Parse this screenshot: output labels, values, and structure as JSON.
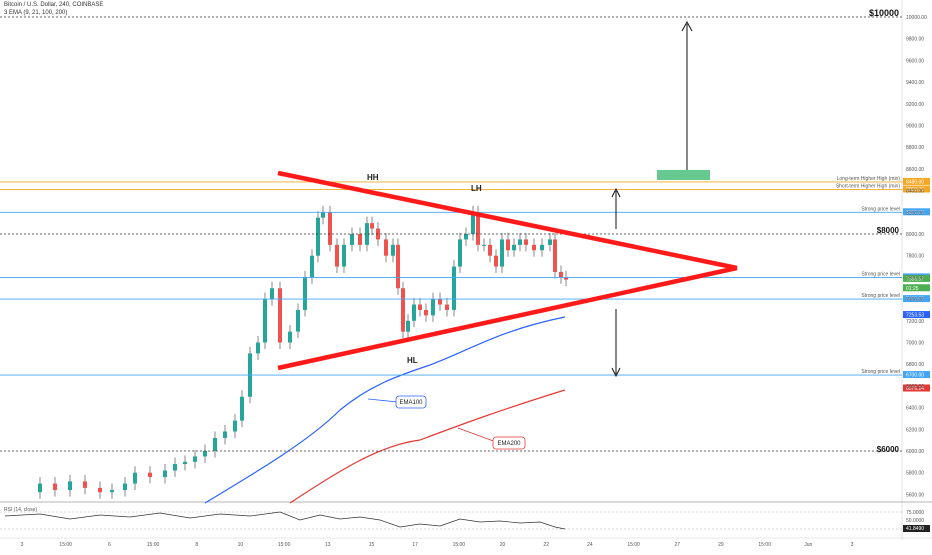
{
  "header": {
    "symbol_line": "Bitcoin / U.S. Dollar, 240, COINBASE",
    "indicator_line": "3 EMA (9, 21, 100, 200)"
  },
  "price_axis": {
    "ticks": [
      "10000.00",
      "9800.00",
      "9600.00",
      "9400.00",
      "9200.00",
      "9000.00",
      "8800.00",
      "8600.00",
      "8400.00",
      "8200.00",
      "8000.00",
      "7800.00",
      "7600.00",
      "7400.00",
      "7200.00",
      "7000.00",
      "6800.00",
      "6600.00",
      "6400.00",
      "6200.00",
      "6000.00",
      "5800.00",
      "5600.00"
    ]
  },
  "time_axis": {
    "ticks": [
      "3",
      "15:00",
      "6",
      "15:00",
      "8",
      "10",
      "15:00",
      "13",
      "15",
      "17",
      "15:00",
      "20",
      "22",
      "24",
      "15:00",
      "27",
      "29",
      "15:00",
      "Jun",
      "3"
    ]
  },
  "big_labels": {
    "p10000": "$10000",
    "p8000": "$8000",
    "p6000": "$6000"
  },
  "levels": [
    {
      "text": "Long-term Higher High (min)",
      "tag": "8480.00",
      "color": "#f5a623"
    },
    {
      "text": "Short-term Higher High (min)",
      "tag": "8358.76",
      "color": "#f5a623"
    },
    {
      "text": "Strong price level",
      "tag": "8200.00",
      "color": "#42a5f5"
    },
    {
      "text": "Strong price level",
      "tag": "7600.00",
      "color": "#42a5f5"
    },
    {
      "text": "Strong price level",
      "tag": "7400.00",
      "color": "#42a5f5"
    },
    {
      "text": "Strong price level",
      "tag": "6700.00",
      "color": "#42a5f5"
    }
  ],
  "price_tags": [
    {
      "text": "7586.57",
      "color": "#4caf50"
    },
    {
      "text": "01:25",
      "color": "#4caf50"
    },
    {
      "text": "7253.53",
      "color": "#2962ff"
    },
    {
      "text": "6576.24",
      "color": "#e53935"
    }
  ],
  "annotations": {
    "hh": "HH",
    "lh": "LH",
    "hl": "HL"
  },
  "callouts": {
    "ema100": "EMA100",
    "ema200": "EMA200"
  },
  "rsi": {
    "label": "RSI (14, close)",
    "ticks": [
      "75.0000",
      "50.0000"
    ],
    "value_tag": "41.8490"
  },
  "colors": {
    "up_candle": "#26a69a",
    "down_candle": "#ef5350",
    "triangle": "#ff1a1a",
    "ema100": "#2962ff",
    "ema200": "#e53935",
    "target_box": "#66c98f"
  },
  "icons": [
    "arrow-up-icon",
    "arrow-down-icon"
  ]
}
